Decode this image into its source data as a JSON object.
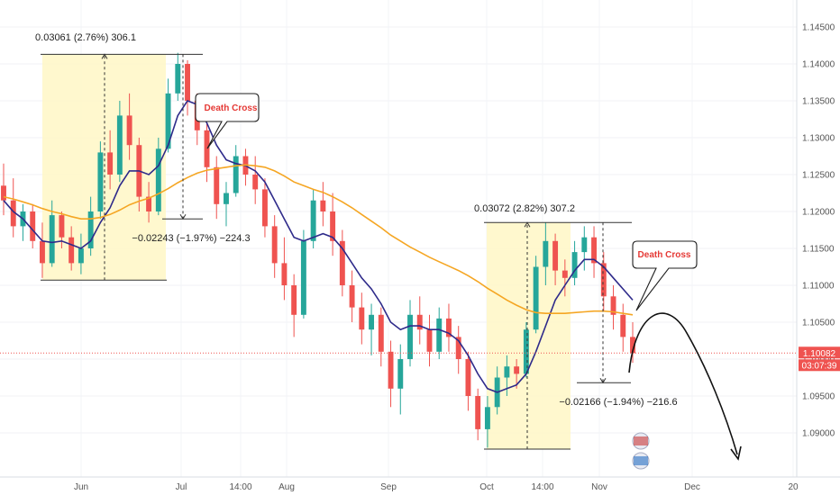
{
  "chart_data": {
    "type": "line",
    "title": "",
    "xlabel": "",
    "ylabel": "",
    "ylim": [
      1.086,
      1.147
    ],
    "y_ticks": [
      "1.14500",
      "1.14000",
      "1.13500",
      "1.13000",
      "1.12500",
      "1.12000",
      "1.11500",
      "1.11000",
      "1.10500",
      "1.10000",
      "1.09500",
      "1.09000"
    ],
    "y_tick_values": [
      1.145,
      1.14,
      1.135,
      1.13,
      1.125,
      1.12,
      1.115,
      1.11,
      1.105,
      1.1,
      1.095,
      1.09
    ],
    "x_ticks": [
      "Jun",
      "Jul",
      "14:00",
      "Aug",
      "Sep",
      "Oct",
      "14:00",
      "Nov",
      "Dec",
      "20"
    ],
    "current_price": "1.10082",
    "countdown": "03:07:39",
    "candles": [
      {
        "o": 1.1235,
        "h": 1.1265,
        "l": 1.1195,
        "c": 1.1215
      },
      {
        "o": 1.1215,
        "h": 1.1245,
        "l": 1.1165,
        "c": 1.118
      },
      {
        "o": 1.118,
        "h": 1.121,
        "l": 1.116,
        "c": 1.12
      },
      {
        "o": 1.12,
        "h": 1.121,
        "l": 1.115,
        "c": 1.116
      },
      {
        "o": 1.116,
        "h": 1.1185,
        "l": 1.111,
        "c": 1.113
      },
      {
        "o": 1.113,
        "h": 1.1215,
        "l": 1.1125,
        "c": 1.1195
      },
      {
        "o": 1.1195,
        "h": 1.12,
        "l": 1.115,
        "c": 1.1165
      },
      {
        "o": 1.1165,
        "h": 1.118,
        "l": 1.112,
        "c": 1.113
      },
      {
        "o": 1.113,
        "h": 1.117,
        "l": 1.1115,
        "c": 1.115
      },
      {
        "o": 1.115,
        "h": 1.122,
        "l": 1.114,
        "c": 1.12
      },
      {
        "o": 1.12,
        "h": 1.1295,
        "l": 1.119,
        "c": 1.128
      },
      {
        "o": 1.128,
        "h": 1.131,
        "l": 1.123,
        "c": 1.125
      },
      {
        "o": 1.125,
        "h": 1.135,
        "l": 1.124,
        "c": 1.133
      },
      {
        "o": 1.133,
        "h": 1.136,
        "l": 1.127,
        "c": 1.129
      },
      {
        "o": 1.129,
        "h": 1.13,
        "l": 1.12,
        "c": 1.122
      },
      {
        "o": 1.122,
        "h": 1.124,
        "l": 1.1185,
        "c": 1.12
      },
      {
        "o": 1.12,
        "h": 1.13,
        "l": 1.1195,
        "c": 1.1285
      },
      {
        "o": 1.1285,
        "h": 1.138,
        "l": 1.128,
        "c": 1.136
      },
      {
        "o": 1.136,
        "h": 1.1415,
        "l": 1.135,
        "c": 1.14
      },
      {
        "o": 1.14,
        "h": 1.1405,
        "l": 1.133,
        "c": 1.135
      },
      {
        "o": 1.135,
        "h": 1.136,
        "l": 1.129,
        "c": 1.131
      },
      {
        "o": 1.131,
        "h": 1.132,
        "l": 1.124,
        "c": 1.126
      },
      {
        "o": 1.126,
        "h": 1.1275,
        "l": 1.119,
        "c": 1.121
      },
      {
        "o": 1.121,
        "h": 1.124,
        "l": 1.118,
        "c": 1.1225
      },
      {
        "o": 1.1225,
        "h": 1.129,
        "l": 1.122,
        "c": 1.1275
      },
      {
        "o": 1.1275,
        "h": 1.1285,
        "l": 1.1235,
        "c": 1.125
      },
      {
        "o": 1.125,
        "h": 1.1275,
        "l": 1.121,
        "c": 1.123
      },
      {
        "o": 1.123,
        "h": 1.1245,
        "l": 1.1165,
        "c": 1.118
      },
      {
        "o": 1.118,
        "h": 1.1195,
        "l": 1.111,
        "c": 1.113
      },
      {
        "o": 1.113,
        "h": 1.1165,
        "l": 1.108,
        "c": 1.11
      },
      {
        "o": 1.11,
        "h": 1.1115,
        "l": 1.103,
        "c": 1.106
      },
      {
        "o": 1.106,
        "h": 1.1175,
        "l": 1.1055,
        "c": 1.116
      },
      {
        "o": 1.116,
        "h": 1.123,
        "l": 1.115,
        "c": 1.1215
      },
      {
        "o": 1.1215,
        "h": 1.124,
        "l": 1.118,
        "c": 1.12
      },
      {
        "o": 1.12,
        "h": 1.1225,
        "l": 1.114,
        "c": 1.116
      },
      {
        "o": 1.116,
        "h": 1.1175,
        "l": 1.1085,
        "c": 1.11
      },
      {
        "o": 1.11,
        "h": 1.112,
        "l": 1.105,
        "c": 1.107
      },
      {
        "o": 1.107,
        "h": 1.109,
        "l": 1.102,
        "c": 1.104
      },
      {
        "o": 1.104,
        "h": 1.1075,
        "l": 1.1005,
        "c": 1.106
      },
      {
        "o": 1.106,
        "h": 1.107,
        "l": 1.099,
        "c": 1.101
      },
      {
        "o": 1.101,
        "h": 1.1025,
        "l": 1.0935,
        "c": 1.096
      },
      {
        "o": 1.096,
        "h": 1.102,
        "l": 1.0925,
        "c": 1.1
      },
      {
        "o": 1.1,
        "h": 1.108,
        "l": 1.099,
        "c": 1.106
      },
      {
        "o": 1.106,
        "h": 1.1085,
        "l": 1.102,
        "c": 1.104
      },
      {
        "o": 1.104,
        "h": 1.106,
        "l": 1.099,
        "c": 1.101
      },
      {
        "o": 1.101,
        "h": 1.107,
        "l": 1.1,
        "c": 1.1055
      },
      {
        "o": 1.1055,
        "h": 1.1075,
        "l": 1.101,
        "c": 1.103
      },
      {
        "o": 1.103,
        "h": 1.1045,
        "l": 1.098,
        "c": 1.1
      },
      {
        "o": 1.1,
        "h": 1.101,
        "l": 1.093,
        "c": 1.095
      },
      {
        "o": 1.095,
        "h": 1.096,
        "l": 1.089,
        "c": 1.0905
      },
      {
        "o": 1.0905,
        "h": 1.095,
        "l": 1.088,
        "c": 1.0935
      },
      {
        "o": 1.0935,
        "h": 1.099,
        "l": 1.0925,
        "c": 1.0975
      },
      {
        "o": 1.0975,
        "h": 1.1005,
        "l": 1.095,
        "c": 1.099
      },
      {
        "o": 1.099,
        "h": 1.1,
        "l": 1.096,
        "c": 1.098
      },
      {
        "o": 1.098,
        "h": 1.105,
        "l": 1.0975,
        "c": 1.104
      },
      {
        "o": 1.104,
        "h": 1.114,
        "l": 1.1035,
        "c": 1.1125
      },
      {
        "o": 1.1125,
        "h": 1.1185,
        "l": 1.11,
        "c": 1.116
      },
      {
        "o": 1.116,
        "h": 1.117,
        "l": 1.11,
        "c": 1.112
      },
      {
        "o": 1.112,
        "h": 1.1135,
        "l": 1.1085,
        "c": 1.111
      },
      {
        "o": 1.111,
        "h": 1.116,
        "l": 1.11,
        "c": 1.1145
      },
      {
        "o": 1.1145,
        "h": 1.118,
        "l": 1.112,
        "c": 1.1165
      },
      {
        "o": 1.1165,
        "h": 1.118,
        "l": 1.111,
        "c": 1.113
      },
      {
        "o": 1.113,
        "h": 1.1145,
        "l": 1.1065,
        "c": 1.1085
      },
      {
        "o": 1.1085,
        "h": 1.11,
        "l": 1.104,
        "c": 1.106
      },
      {
        "o": 1.106,
        "h": 1.1075,
        "l": 1.101,
        "c": 1.103
      },
      {
        "o": 1.103,
        "h": 1.105,
        "l": 1.0995,
        "c": 1.1008
      }
    ],
    "series": [
      {
        "name": "",
        "color": "#2e2a8a",
        "values": [
          1.1215,
          1.12,
          1.119,
          1.1175,
          1.116,
          1.1158,
          1.116,
          1.1155,
          1.115,
          1.116,
          1.1185,
          1.1205,
          1.1235,
          1.1255,
          1.1255,
          1.125,
          1.1262,
          1.129,
          1.133,
          1.135,
          1.1345,
          1.132,
          1.129,
          1.127,
          1.1265,
          1.1262,
          1.1255,
          1.124,
          1.1215,
          1.119,
          1.1165,
          1.116,
          1.1165,
          1.117,
          1.1165,
          1.115,
          1.113,
          1.111,
          1.1095,
          1.1075,
          1.105,
          1.104,
          1.1045,
          1.1045,
          1.104,
          1.104,
          1.1035,
          1.1025,
          1.1005,
          1.098,
          1.096,
          1.0955,
          1.096,
          1.0965,
          1.098,
          1.101,
          1.1045,
          1.108,
          1.11,
          1.112,
          1.1135,
          1.1135,
          1.1125,
          1.111,
          1.1095,
          1.108
        ]
      },
      {
        "name": "",
        "color": "#f5a623",
        "values": [
          1.122,
          1.1217,
          1.1213,
          1.1209,
          1.1204,
          1.12,
          1.1197,
          1.1193,
          1.119,
          1.119,
          1.1192,
          1.1196,
          1.1202,
          1.1209,
          1.1214,
          1.1218,
          1.1224,
          1.1231,
          1.1239,
          1.1246,
          1.1252,
          1.1256,
          1.1258,
          1.126,
          1.1262,
          1.1263,
          1.1262,
          1.126,
          1.1255,
          1.1248,
          1.124,
          1.1235,
          1.123,
          1.1226,
          1.122,
          1.1213,
          1.1205,
          1.1196,
          1.1187,
          1.1178,
          1.1168,
          1.116,
          1.1152,
          1.1145,
          1.1138,
          1.1132,
          1.1126,
          1.112,
          1.1113,
          1.1105,
          1.1096,
          1.1088,
          1.108,
          1.1073,
          1.1067,
          1.1063,
          1.1062,
          1.1062,
          1.1062,
          1.1063,
          1.1064,
          1.1065,
          1.1065,
          1.1064,
          1.1062,
          1.106
        ]
      }
    ],
    "annotations": [
      {
        "text": "0.03061 (2.76%) 306.1"
      },
      {
        "text": "−0.02243 (−1.97%) −224.3"
      },
      {
        "text": "0.03072 (2.82%) 307.2"
      },
      {
        "text": "−0.02166 (−1.94%) −216.6"
      },
      {
        "text": "Death Cross"
      },
      {
        "text": "Death Cross"
      }
    ]
  }
}
